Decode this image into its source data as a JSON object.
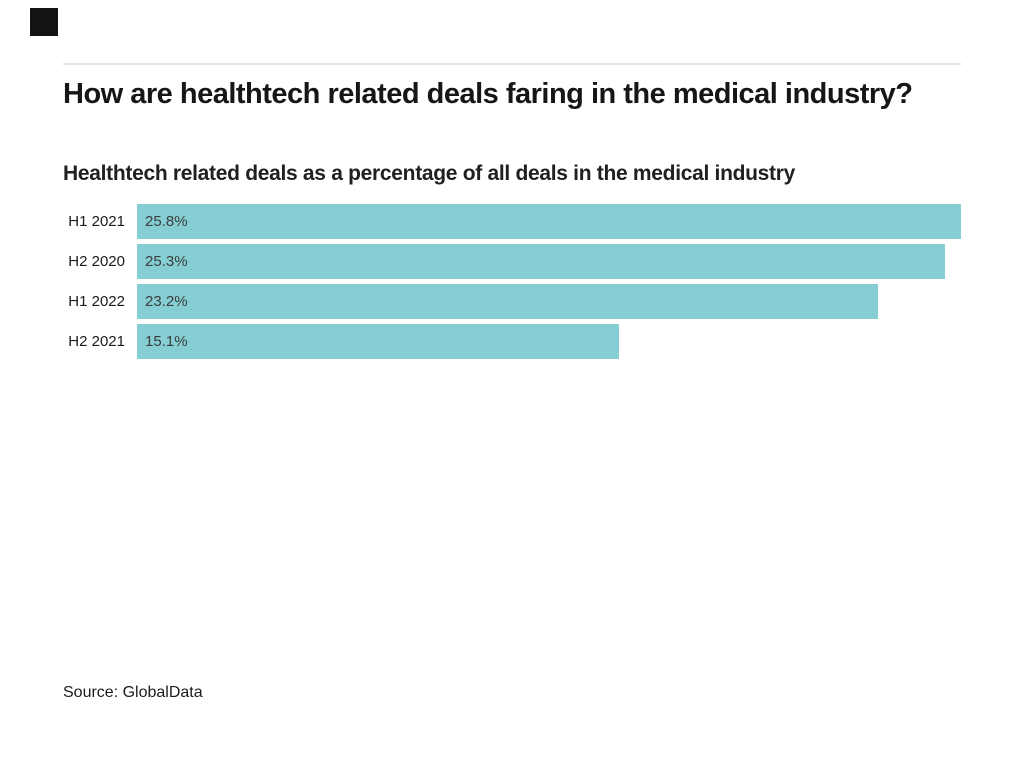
{
  "branding": {
    "logo_color": "#131313"
  },
  "header": {
    "title": "How are healthtech related deals faring in the medical industry?",
    "subtitle": "Healthtech related deals as a percentage of all deals in the medical industry"
  },
  "chart_data": {
    "type": "bar",
    "orientation": "horizontal",
    "title": "How are healthtech related deals faring in the medical industry?",
    "subtitle": "Healthtech related deals as a percentage of all deals in the medical industry",
    "categories": [
      "H1 2021",
      "H2 2020",
      "H1 2022",
      "H2 2021"
    ],
    "values": [
      25.8,
      25.3,
      23.2,
      15.1
    ],
    "value_labels": [
      "25.8%",
      "25.3%",
      "23.2%",
      "15.1%"
    ],
    "xlim": [
      0,
      25.8
    ],
    "grid": false,
    "legend": false,
    "bar_color": "#85ced3",
    "value_label_color": "#3d3d3d",
    "source": "Source: GlobalData"
  },
  "footer": {
    "source": "Source: GlobalData"
  }
}
